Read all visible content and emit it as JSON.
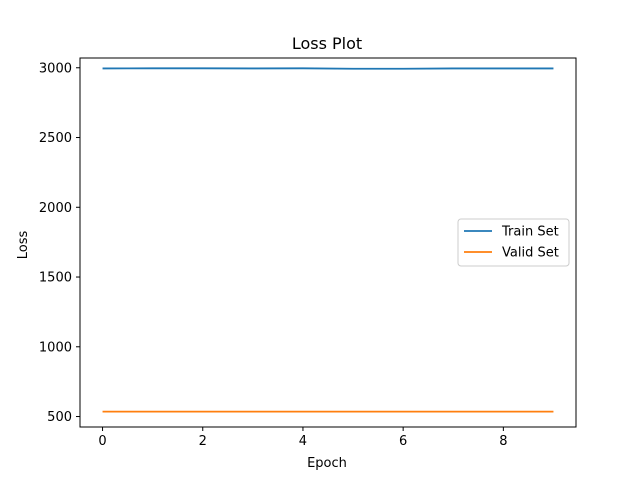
{
  "chart_data": {
    "type": "line",
    "title": "Loss Plot",
    "xlabel": "Epoch",
    "ylabel": "Loss",
    "x": [
      0,
      1,
      2,
      3,
      4,
      5,
      6,
      7,
      8,
      9
    ],
    "xlim": [
      -0.45,
      9.45
    ],
    "ylim": [
      425,
      3070
    ],
    "xticks": [
      0,
      2,
      4,
      6,
      8
    ],
    "yticks": [
      500,
      1000,
      1500,
      2000,
      2500,
      3000
    ],
    "grid": false,
    "legend_position": "center-right",
    "series": [
      {
        "name": "Train Set",
        "color": "#1f77b4",
        "values": [
          2995,
          2996,
          2996,
          2995,
          2996,
          2993,
          2993,
          2995,
          2995,
          2995
        ]
      },
      {
        "name": "Valid Set",
        "color": "#ff7f0e",
        "values": [
          535,
          535,
          535,
          535,
          535,
          535,
          535,
          535,
          535,
          535
        ]
      }
    ]
  }
}
